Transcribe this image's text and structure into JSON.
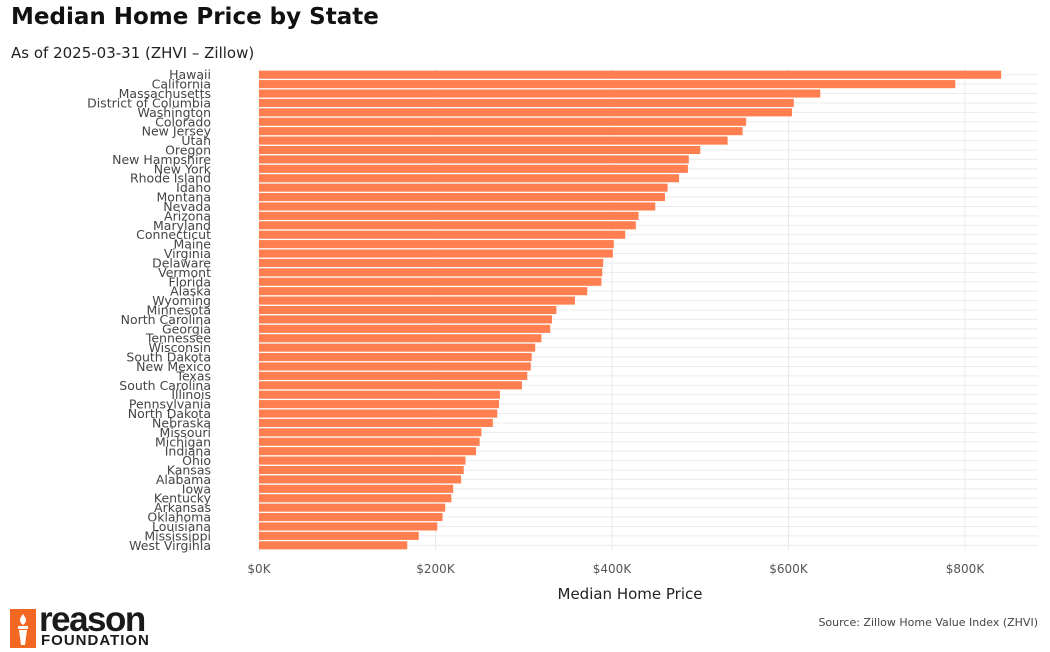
{
  "header": {
    "title": "Median Home Price by State",
    "subtitle": "As of 2025-03-31 (ZHVI – Zillow)"
  },
  "footer": {
    "source": "Source: Zillow Home Value Index (ZHVI)",
    "logo_word1": "reason",
    "logo_word2": "FOUNDATION",
    "logo_icon": "torch-icon",
    "logo_color": "#f26722"
  },
  "chart_data": {
    "type": "bar",
    "orientation": "horizontal",
    "bar_color": "#ff7f50",
    "grid": true,
    "xlabel": "Median Home Price",
    "ylabel": "",
    "xlim": [
      0,
      880000
    ],
    "xticks": [
      0,
      200000,
      400000,
      600000,
      800000
    ],
    "xtick_labels": [
      "$0K",
      "$200K",
      "$400K",
      "$600K",
      "$800K"
    ],
    "categories": [
      "Hawaii",
      "California",
      "Massachusetts",
      "District of Columbia",
      "Washington",
      "Colorado",
      "New Jersey",
      "Utah",
      "Oregon",
      "New Hampshire",
      "New York",
      "Rhode Island",
      "Idaho",
      "Montana",
      "Nevada",
      "Arizona",
      "Maryland",
      "Connecticut",
      "Maine",
      "Virginia",
      "Delaware",
      "Vermont",
      "Florida",
      "Alaska",
      "Wyoming",
      "Minnesota",
      "North Carolina",
      "Georgia",
      "Tennessee",
      "Wisconsin",
      "South Dakota",
      "New Mexico",
      "Texas",
      "South Carolina",
      "Illinois",
      "Pennsylvania",
      "North Dakota",
      "Nebraska",
      "Missouri",
      "Michigan",
      "Indiana",
      "Ohio",
      "Kansas",
      "Alabama",
      "Iowa",
      "Kentucky",
      "Arkansas",
      "Oklahoma",
      "Louisiana",
      "Mississippi",
      "West Virginia"
    ],
    "values": [
      841000,
      789000,
      636000,
      606000,
      604000,
      552000,
      548000,
      531000,
      500000,
      487000,
      486000,
      476000,
      463000,
      460000,
      449000,
      430000,
      427000,
      415000,
      402000,
      401000,
      390000,
      389000,
      388000,
      372000,
      358000,
      337000,
      332000,
      330000,
      320000,
      313000,
      309000,
      308000,
      304000,
      298000,
      273000,
      272000,
      270000,
      265000,
      252000,
      250000,
      246000,
      234000,
      232000,
      229000,
      220000,
      218000,
      211000,
      208000,
      202000,
      181000,
      168000
    ]
  }
}
